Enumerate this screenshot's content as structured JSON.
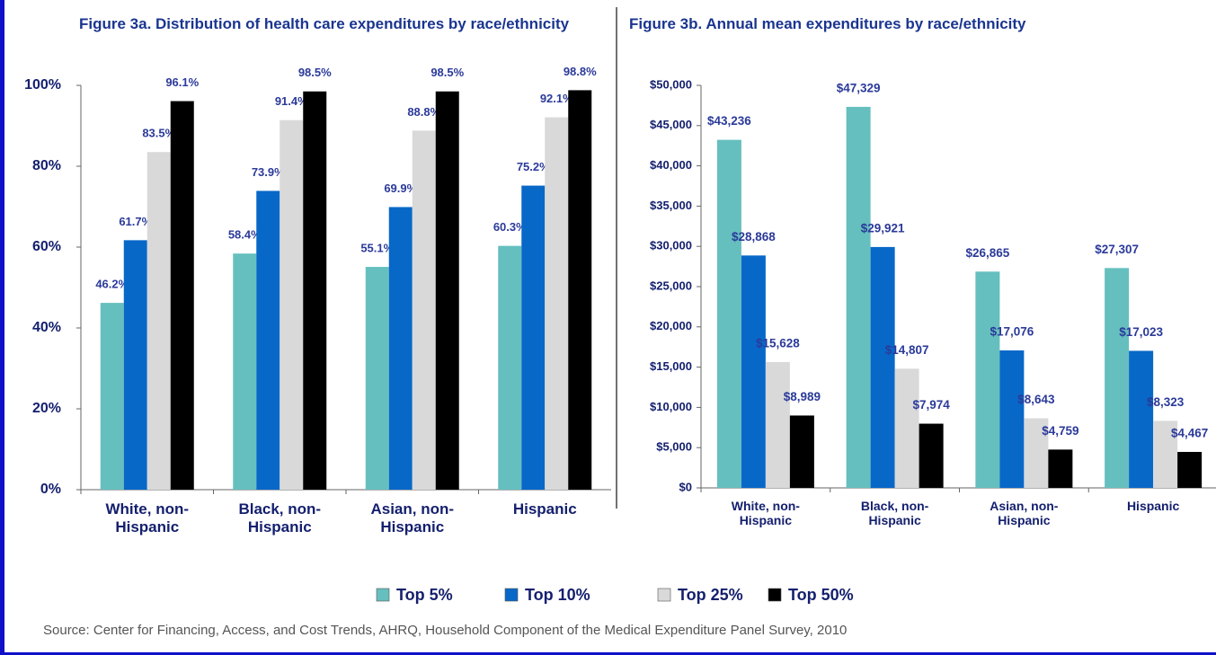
{
  "chart_data": [
    {
      "type": "bar",
      "title": "Figure 3a. Distribution  of health care expenditures by race/ethnicity",
      "categories": [
        "White, non-Hispanic",
        "Black, non-Hispanic",
        "Asian, non-Hispanic",
        "Hispanic"
      ],
      "series": [
        {
          "name": "Top 5%",
          "color": "#66bfbf",
          "values": [
            46.2,
            58.4,
            55.1,
            60.3
          ],
          "value_labels": [
            "46.2%",
            "58.4%",
            "55.1%",
            "60.3%"
          ]
        },
        {
          "name": "Top 10%",
          "color": "#0868c8",
          "values": [
            61.7,
            73.9,
            69.9,
            75.2
          ],
          "value_labels": [
            "61.7%",
            "73.9%",
            "69.9%",
            "75.2%"
          ]
        },
        {
          "name": "Top 25%",
          "color": "#d9d9d9",
          "values": [
            83.5,
            91.4,
            88.8,
            92.1
          ],
          "value_labels": [
            "83.5%",
            "91.4%",
            "88.8%",
            "92.1%"
          ]
        },
        {
          "name": "Top 50%",
          "color": "#000000",
          "values": [
            96.1,
            98.5,
            98.5,
            98.8
          ],
          "value_labels": [
            "96.1%",
            "98.5%",
            "98.5%",
            "98.8%"
          ]
        }
      ],
      "ylim": [
        0,
        100
      ],
      "yticks": [
        {
          "value": 0,
          "label": "0%"
        },
        {
          "value": 20,
          "label": "20%"
        },
        {
          "value": 40,
          "label": "40%"
        },
        {
          "value": 60,
          "label": "60%"
        },
        {
          "value": 80,
          "label": "80%"
        },
        {
          "value": 100,
          "label": "100%"
        }
      ],
      "grid": false
    },
    {
      "type": "bar",
      "title": "Figure 3b. Annual mean expenditures by race/ethnicity",
      "categories": [
        "White, non-Hispanic",
        "Black, non-Hispanic",
        "Asian, non-Hispanic",
        "Hispanic"
      ],
      "series": [
        {
          "name": "Top 5%",
          "color": "#66bfbf",
          "values": [
            43236,
            47329,
            26865,
            27307
          ],
          "value_labels": [
            "$43,236",
            "$47,329",
            "$26,865",
            "$27,307"
          ]
        },
        {
          "name": "Top 10%",
          "color": "#0868c8",
          "values": [
            28868,
            29921,
            17076,
            17023
          ],
          "value_labels": [
            "$28,868",
            "$29,921",
            "$17,076",
            "$17,023"
          ]
        },
        {
          "name": "Top 25%",
          "color": "#d9d9d9",
          "values": [
            15628,
            14807,
            8643,
            8323
          ],
          "value_labels": [
            "$15,628",
            "$14,807",
            "$8,643",
            "$8,323"
          ]
        },
        {
          "name": "Top 50%",
          "color": "#000000",
          "values": [
            8989,
            7974,
            4759,
            4467
          ],
          "value_labels": [
            "$8,989",
            "$7,974",
            "$4,759",
            "$4,467"
          ]
        }
      ],
      "ylim": [
        0,
        50000
      ],
      "yticks": [
        {
          "value": 0,
          "label": "$0"
        },
        {
          "value": 5000,
          "label": "$5,000"
        },
        {
          "value": 10000,
          "label": "$10,000"
        },
        {
          "value": 15000,
          "label": "$15,000"
        },
        {
          "value": 20000,
          "label": "$20,000"
        },
        {
          "value": 25000,
          "label": "$25,000"
        },
        {
          "value": 30000,
          "label": "$30,000"
        },
        {
          "value": 35000,
          "label": "$35,000"
        },
        {
          "value": 40000,
          "label": "$40,000"
        },
        {
          "value": 45000,
          "label": "$45,000"
        },
        {
          "value": 50000,
          "label": "$50,000"
        }
      ],
      "grid": false
    }
  ],
  "source": "Source: Center for Financing, Access, and Cost Trends, AHRQ,  Household Component of the Medical Expenditure Panel Survey,  2010"
}
